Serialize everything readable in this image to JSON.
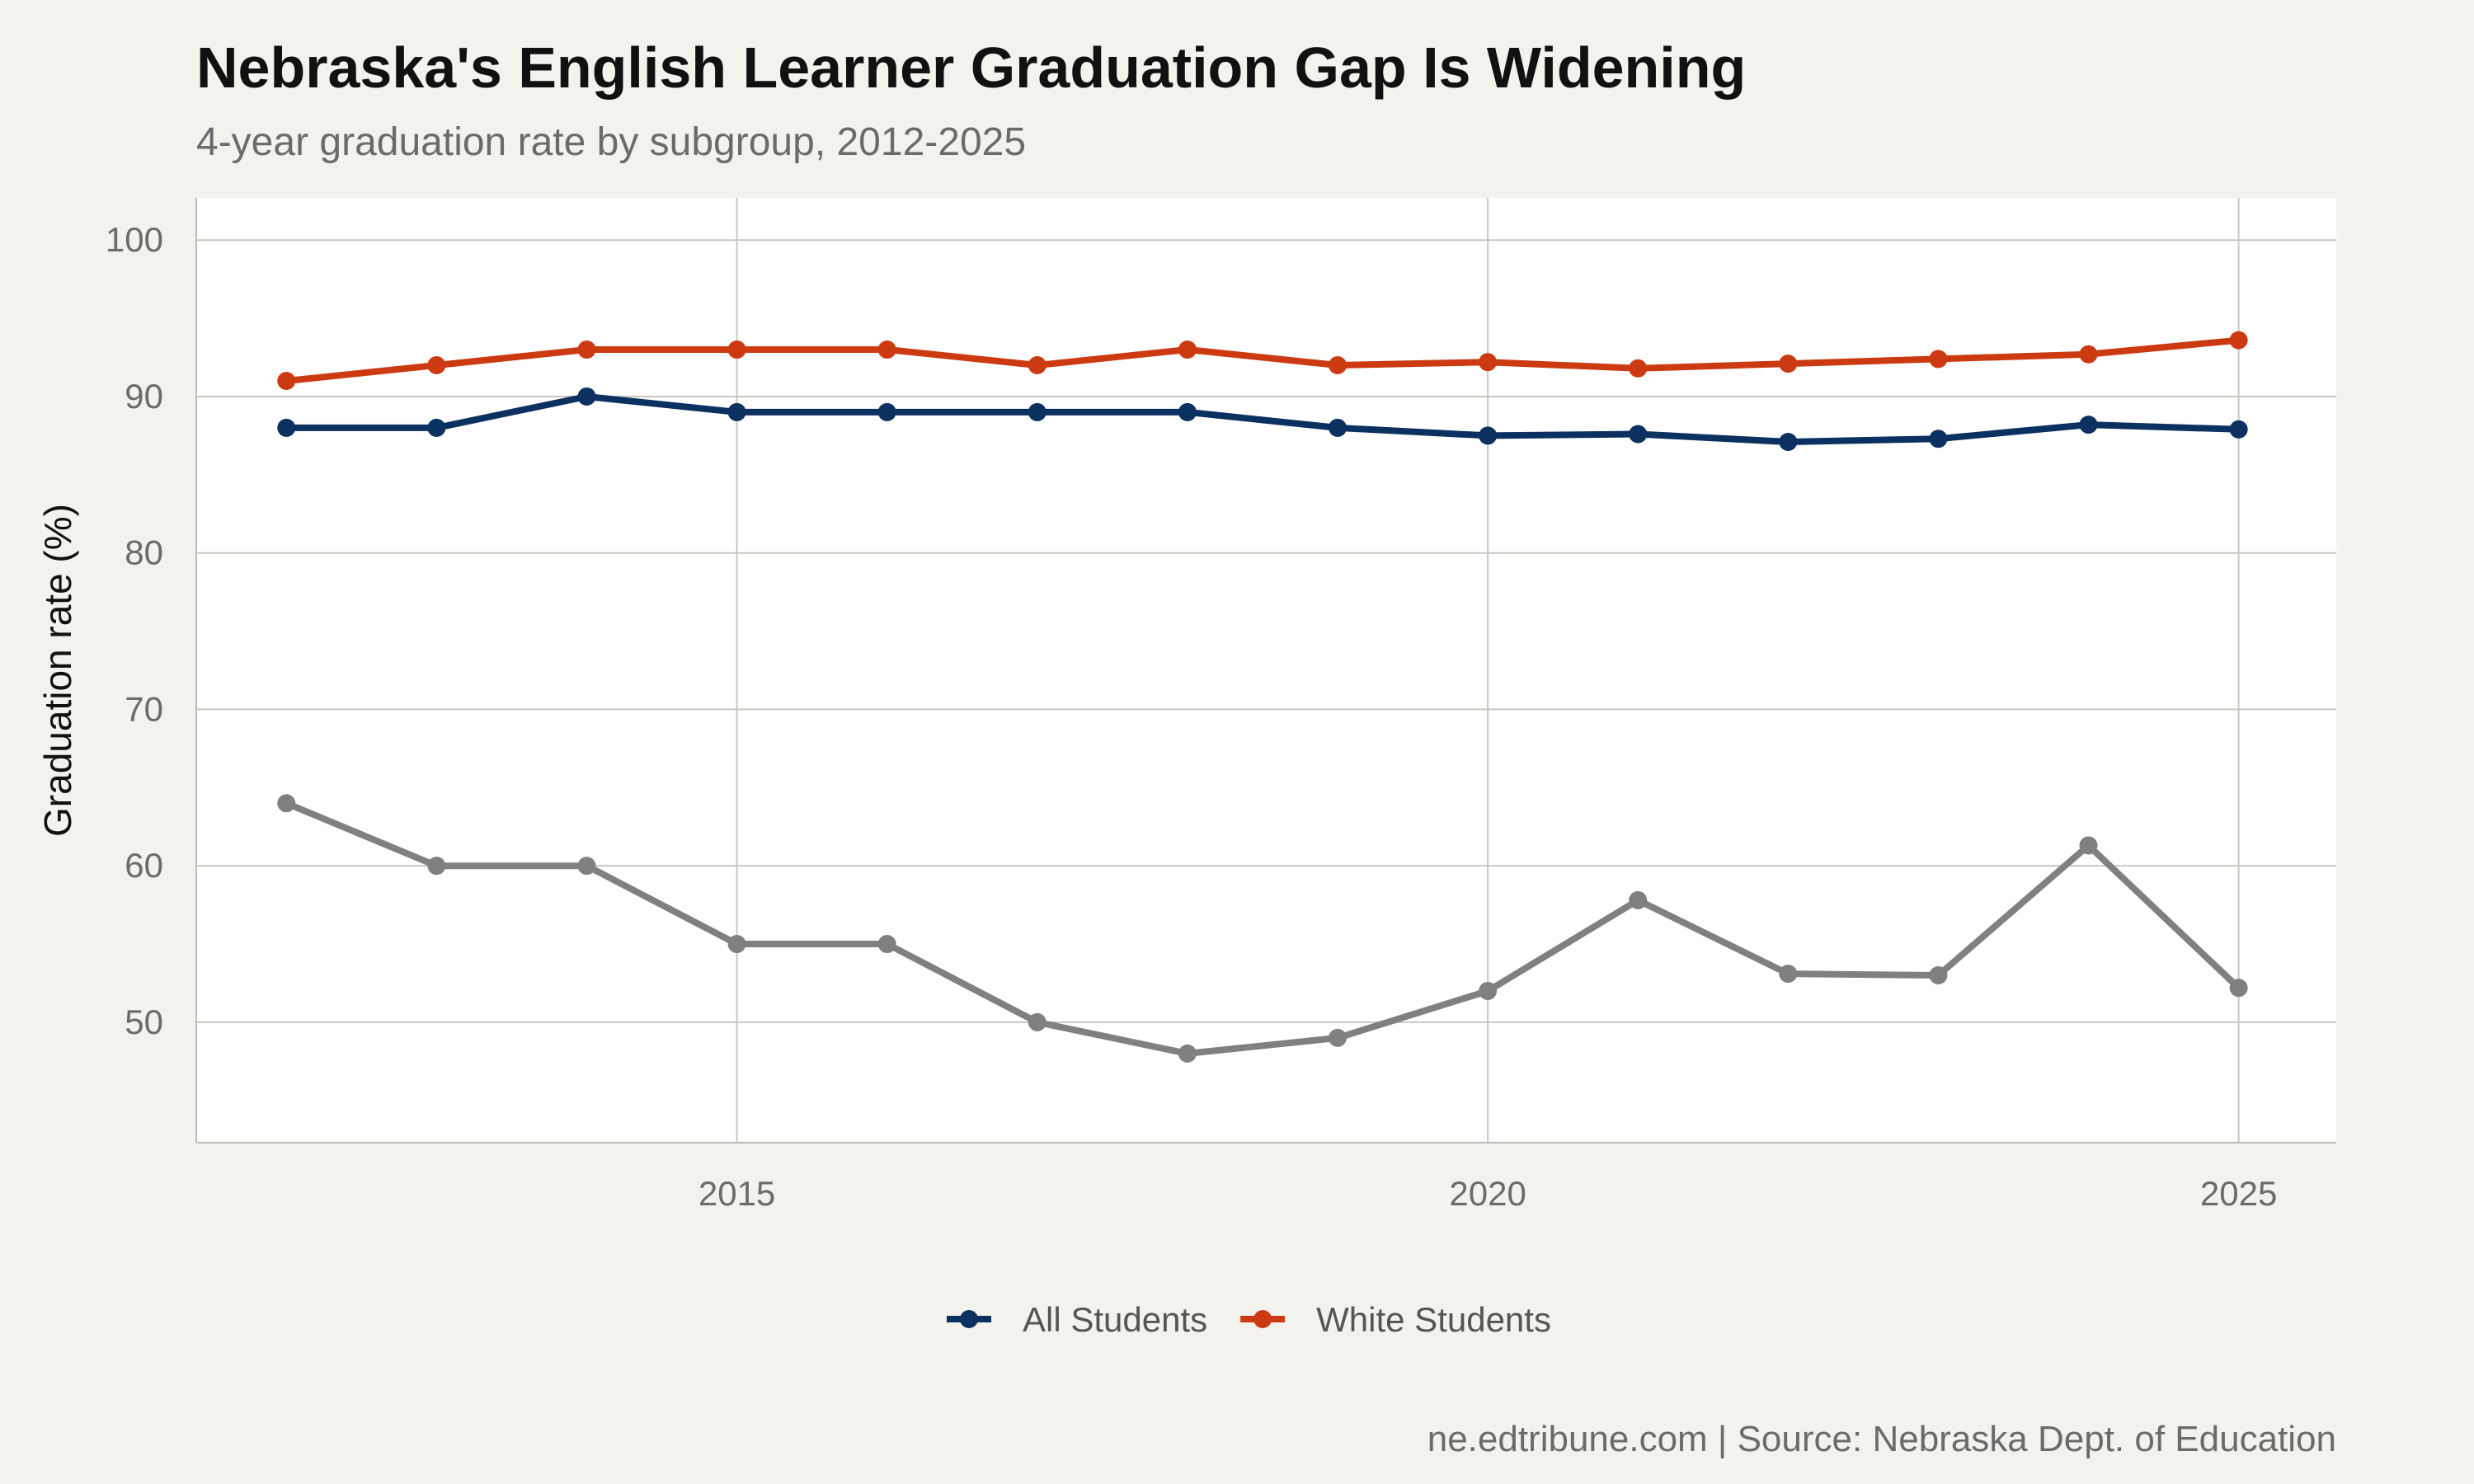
{
  "chart_data": {
    "type": "line",
    "title": "Nebraska's English Learner Graduation Gap Is Widening",
    "subtitle": "4-year graduation rate by subgroup, 2012-2025",
    "xlabel": "",
    "ylabel": "Graduation rate (%)",
    "caption": "ne.edtribune.com | Source: Nebraska Dept. of Education",
    "x": [
      2012,
      2013,
      2014,
      2015,
      2016,
      2017,
      2018,
      2019,
      2020,
      2021,
      2022,
      2023,
      2024,
      2025
    ],
    "xlim": [
      2011.4,
      2025.65
    ],
    "ylim": [
      42.3,
      102.7
    ],
    "xticks": [
      2015,
      2020,
      2025
    ],
    "yticks": [
      50,
      60,
      70,
      80,
      90,
      100
    ],
    "grid": true,
    "legend_position": "bottom",
    "series": [
      {
        "name": "",
        "color": "#808080",
        "in_legend": false,
        "values": [
          64,
          60,
          60,
          55,
          55,
          50,
          48,
          49,
          52,
          57.8,
          53.1,
          53.0,
          61.3,
          52.2
        ]
      },
      {
        "name": "All Students",
        "color": "#0b3160",
        "in_legend": true,
        "values": [
          88,
          88,
          90,
          89,
          89,
          89,
          89,
          88,
          87.5,
          87.6,
          87.1,
          87.3,
          88.2,
          87.9
        ]
      },
      {
        "name": "White Students",
        "color": "#cc3a12",
        "in_legend": true,
        "values": [
          91,
          92,
          93,
          93,
          93,
          92,
          93,
          92,
          92.2,
          91.8,
          92.1,
          92.4,
          92.7,
          93.6
        ]
      }
    ]
  }
}
